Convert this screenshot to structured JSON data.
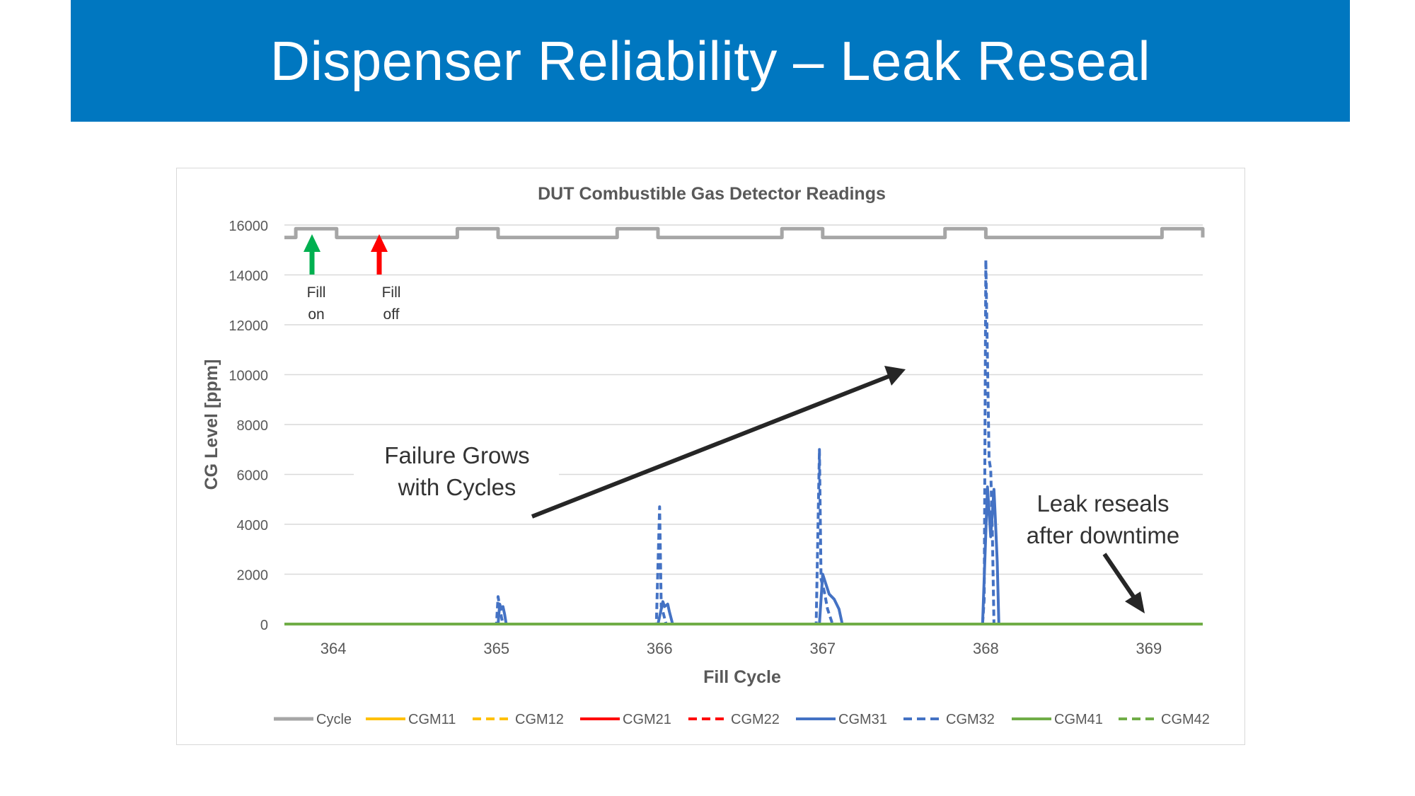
{
  "slide": {
    "title": "Dispenser Reliability – Leak Reseal"
  },
  "chart_data": {
    "type": "line",
    "title": "DUT Combustible Gas Detector Readings",
    "xlabel": "Fill Cycle",
    "ylabel": "CG Level [ppm]",
    "ylim": [
      0,
      16000
    ],
    "xlim": [
      363.7,
      369.33
    ],
    "yticks": [
      0,
      2000,
      4000,
      6000,
      8000,
      10000,
      12000,
      14000,
      16000
    ],
    "ytick_labels": [
      "0",
      "2000",
      "4000",
      "6000",
      "8000",
      "10000",
      "12000",
      "14000",
      "16000"
    ],
    "xticks": [
      364,
      365,
      366,
      367,
      368,
      369
    ],
    "xtick_labels": [
      "364",
      "365",
      "366",
      "367",
      "368",
      "369"
    ],
    "grid": true,
    "legend_position": "bottom",
    "series": [
      {
        "name": "Cycle",
        "color": "#a6a6a6",
        "dash": "solid",
        "x": [
          363.7,
          363.77,
          363.77,
          364.02,
          364.02,
          364.76,
          364.76,
          365.01,
          365.01,
          365.74,
          365.74,
          365.99,
          365.99,
          366.75,
          366.75,
          367.0,
          367.0,
          367.75,
          367.75,
          368.0,
          368.0,
          369.08,
          369.08,
          369.33,
          369.33
        ],
        "values": [
          15500,
          15500,
          15850,
          15850,
          15500,
          15500,
          15850,
          15850,
          15500,
          15500,
          15850,
          15850,
          15500,
          15500,
          15850,
          15850,
          15500,
          15500,
          15850,
          15850,
          15500,
          15500,
          15850,
          15850,
          15500
        ]
      },
      {
        "name": "CGM11",
        "color": "#ffc000",
        "dash": "solid",
        "x": [
          363.7,
          369.33
        ],
        "values": [
          0,
          0
        ]
      },
      {
        "name": "CGM12",
        "color": "#ffc000",
        "dash": "dashed",
        "x": [
          363.7,
          369.33
        ],
        "values": [
          0,
          0
        ]
      },
      {
        "name": "CGM21",
        "color": "#ff0000",
        "dash": "solid",
        "x": [
          363.7,
          369.33
        ],
        "values": [
          0,
          0
        ]
      },
      {
        "name": "CGM22",
        "color": "#ff0000",
        "dash": "dashed",
        "x": [
          363.7,
          369.33
        ],
        "values": [
          0,
          0
        ]
      },
      {
        "name": "CGM31",
        "color": "#4472c4",
        "dash": "solid",
        "x": [
          363.7,
          365.01,
          365.02,
          365.03,
          365.04,
          365.05,
          365.06,
          365.99,
          366.02,
          366.03,
          366.05,
          366.06,
          366.08,
          366.98,
          367.0,
          367.02,
          367.04,
          367.07,
          367.1,
          367.12,
          367.98,
          368.01,
          368.03,
          368.05,
          368.06,
          368.07,
          368.08,
          369.33
        ],
        "values": [
          0,
          0,
          800,
          600,
          700,
          400,
          0,
          0,
          900,
          700,
          800,
          500,
          0,
          0,
          2000,
          1600,
          1200,
          1000,
          600,
          0,
          0,
          5500,
          3500,
          5400,
          4000,
          2500,
          0,
          0
        ]
      },
      {
        "name": "CGM32",
        "color": "#4472c4",
        "dash": "dashed",
        "x": [
          363.7,
          365.0,
          365.01,
          365.02,
          365.03,
          365.04,
          365.98,
          366.0,
          366.01,
          366.02,
          366.04,
          366.96,
          366.98,
          366.99,
          367.01,
          367.03,
          367.06,
          367.98,
          367.99,
          368.0,
          368.02,
          368.03,
          368.04,
          368.05,
          369.33
        ],
        "values": [
          0,
          0,
          1100,
          700,
          300,
          0,
          0,
          4700,
          700,
          500,
          0,
          0,
          7000,
          1800,
          1300,
          600,
          0,
          0,
          1000,
          14600,
          6600,
          6200,
          3700,
          0,
          0
        ]
      },
      {
        "name": "CGM41",
        "color": "#70ad47",
        "dash": "solid",
        "x": [
          363.7,
          369.33
        ],
        "values": [
          0,
          0
        ]
      },
      {
        "name": "CGM42",
        "color": "#70ad47",
        "dash": "dashed",
        "x": [
          363.7,
          369.33
        ],
        "values": [
          0,
          0
        ]
      }
    ],
    "annotations": {
      "fill_on": {
        "line1": "Fill",
        "line2": "on",
        "color": "#00b050"
      },
      "fill_off": {
        "line1": "Fill",
        "line2": "off",
        "color": "#ff0000"
      },
      "grows": {
        "line1": "Failure Grows",
        "line2": "with Cycles"
      },
      "reseal": {
        "line1": "Leak reseals",
        "line2": "after downtime"
      }
    }
  }
}
